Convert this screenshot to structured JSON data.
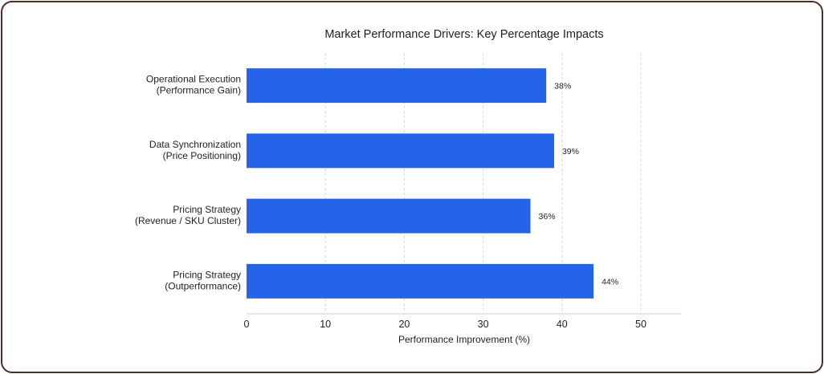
{
  "chart_data": {
    "type": "bar",
    "orientation": "horizontal",
    "title": "Market Performance Drivers: Key Percentage Impacts",
    "xlabel": "Performance Improvement (%)",
    "ylabel": "",
    "categories": [
      [
        "Operational Execution",
        "(Performance Gain)"
      ],
      [
        "Data Synchronization",
        "(Price Positioning)"
      ],
      [
        "Pricing Strategy",
        "(Revenue / SKU Cluster)"
      ],
      [
        "Pricing Strategy",
        "(Outperformance)"
      ]
    ],
    "values": [
      38,
      39,
      36,
      44
    ],
    "data_labels": [
      "38%",
      "39%",
      "36%",
      "44%"
    ],
    "xticks": [
      0,
      10,
      20,
      30,
      40,
      50
    ],
    "xlim": [
      0,
      55
    ],
    "grid": "vertical dashed",
    "bar_color": "#2563e8"
  }
}
